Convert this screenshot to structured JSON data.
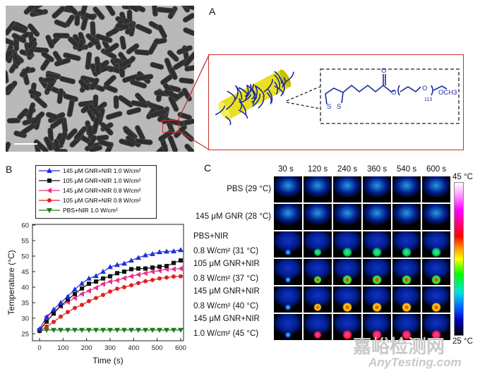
{
  "panel_labels": {
    "a": "A",
    "b": "B",
    "c": "C"
  },
  "panel_a": {
    "scale_bar_label": "",
    "molecule": {
      "atoms": [
        "S",
        "S",
        "O",
        "O",
        "O",
        "OCH3"
      ],
      "subscript": "113"
    }
  },
  "chart_data": {
    "type": "line",
    "xlabel": "Time (s)",
    "ylabel": "Temperature (°C)",
    "xlim": [
      -20,
      620
    ],
    "ylim": [
      25,
      60
    ],
    "xticks": [
      "0",
      "100",
      "200",
      "300",
      "400",
      "500",
      "600"
    ],
    "yticks": [
      "25",
      "30",
      "35",
      "40",
      "45",
      "50",
      "55",
      "60"
    ],
    "legend_position": "top (above plot)",
    "grid": false,
    "x": [
      0,
      30,
      60,
      90,
      120,
      150,
      180,
      210,
      240,
      270,
      300,
      330,
      360,
      390,
      420,
      450,
      480,
      510,
      540,
      570,
      600
    ],
    "series": [
      {
        "name": "145 μM GNR+NIR 1.0 W/cm²",
        "color": "#1f2fd6",
        "marker": "triangle-up",
        "values": [
          26.5,
          30.3,
          32.8,
          35,
          37,
          39.3,
          41.2,
          42.8,
          43.6,
          45,
          46.5,
          47.2,
          47.6,
          48.6,
          49.5,
          50.3,
          50.7,
          51.3,
          51.5,
          51.6,
          52
        ]
      },
      {
        "name": "105 μM GNR+NIR 1.0 W/cm²",
        "color": "#111111",
        "marker": "square",
        "values": [
          26,
          28.9,
          31.5,
          34,
          36,
          37.8,
          39.6,
          41.1,
          41.8,
          42.8,
          43.5,
          44.5,
          45,
          45.8,
          46,
          46,
          46.3,
          46.6,
          46.8,
          47.8,
          48.6
        ]
      },
      {
        "name": "145 μM GNR+NIR 0.8 W/cm²",
        "color": "#e8338a",
        "marker": "triangle-left",
        "values": [
          26.5,
          30.5,
          32.2,
          33.8,
          35.2,
          36.5,
          37.8,
          38.8,
          39.8,
          41,
          41.8,
          42.2,
          42.9,
          43.5,
          44,
          44.5,
          45,
          45.3,
          45.8,
          45.8,
          46
        ]
      },
      {
        "name": "105 μM GNR+NIR 0.8 W/cm²",
        "color": "#e02222",
        "marker": "circle",
        "values": [
          25.8,
          27.3,
          28.8,
          30.5,
          32,
          33.3,
          34.3,
          35.5,
          36.5,
          37.5,
          38.6,
          39.5,
          40,
          40.6,
          41.3,
          41.9,
          42.3,
          42.8,
          43.1,
          43.4,
          43.5
        ]
      },
      {
        "name": "PBS+NIR 1.0 W/cm²",
        "color": "#1e7a1e",
        "marker": "triangle-down",
        "values": [
          26,
          26.2,
          26.2,
          26.2,
          26.2,
          26.2,
          26.2,
          26.2,
          26.2,
          26.2,
          26.2,
          26.2,
          26.2,
          26.2,
          26.2,
          26.2,
          26.2,
          26.2,
          26.2,
          26.2,
          26.2
        ]
      }
    ]
  },
  "panel_c": {
    "time_headers": [
      "30 s",
      "120 s",
      "240 s",
      "360 s",
      "540 s",
      "600 s"
    ],
    "rows": [
      {
        "line1": "PBS (29 °C)",
        "line2": "",
        "hot": 0
      },
      {
        "line1": "145 μM GNR (28 °C)",
        "line2": "",
        "hot": 0
      },
      {
        "line1": "PBS+NIR",
        "line2": "0.8 W/cm² (31 °C)",
        "hot": 1
      },
      {
        "line1": "105 μM GNR+NIR",
        "line2": "0.8 W/cm² (37 °C)",
        "hot": 2
      },
      {
        "line1": "145 μM GNR+NIR",
        "line2": "0.8 W/cm² (40 °C)",
        "hot": 3
      },
      {
        "line1": "145 μM GNR+NIR",
        "line2": "1.0 W/cm² (45 °C)",
        "hot": 4
      }
    ],
    "colorbar": {
      "max_label": "45 °C",
      "min_label": "25 °C"
    }
  },
  "watermark": {
    "cn": "嘉峪检测网",
    "en": "AnyTesting.com"
  }
}
